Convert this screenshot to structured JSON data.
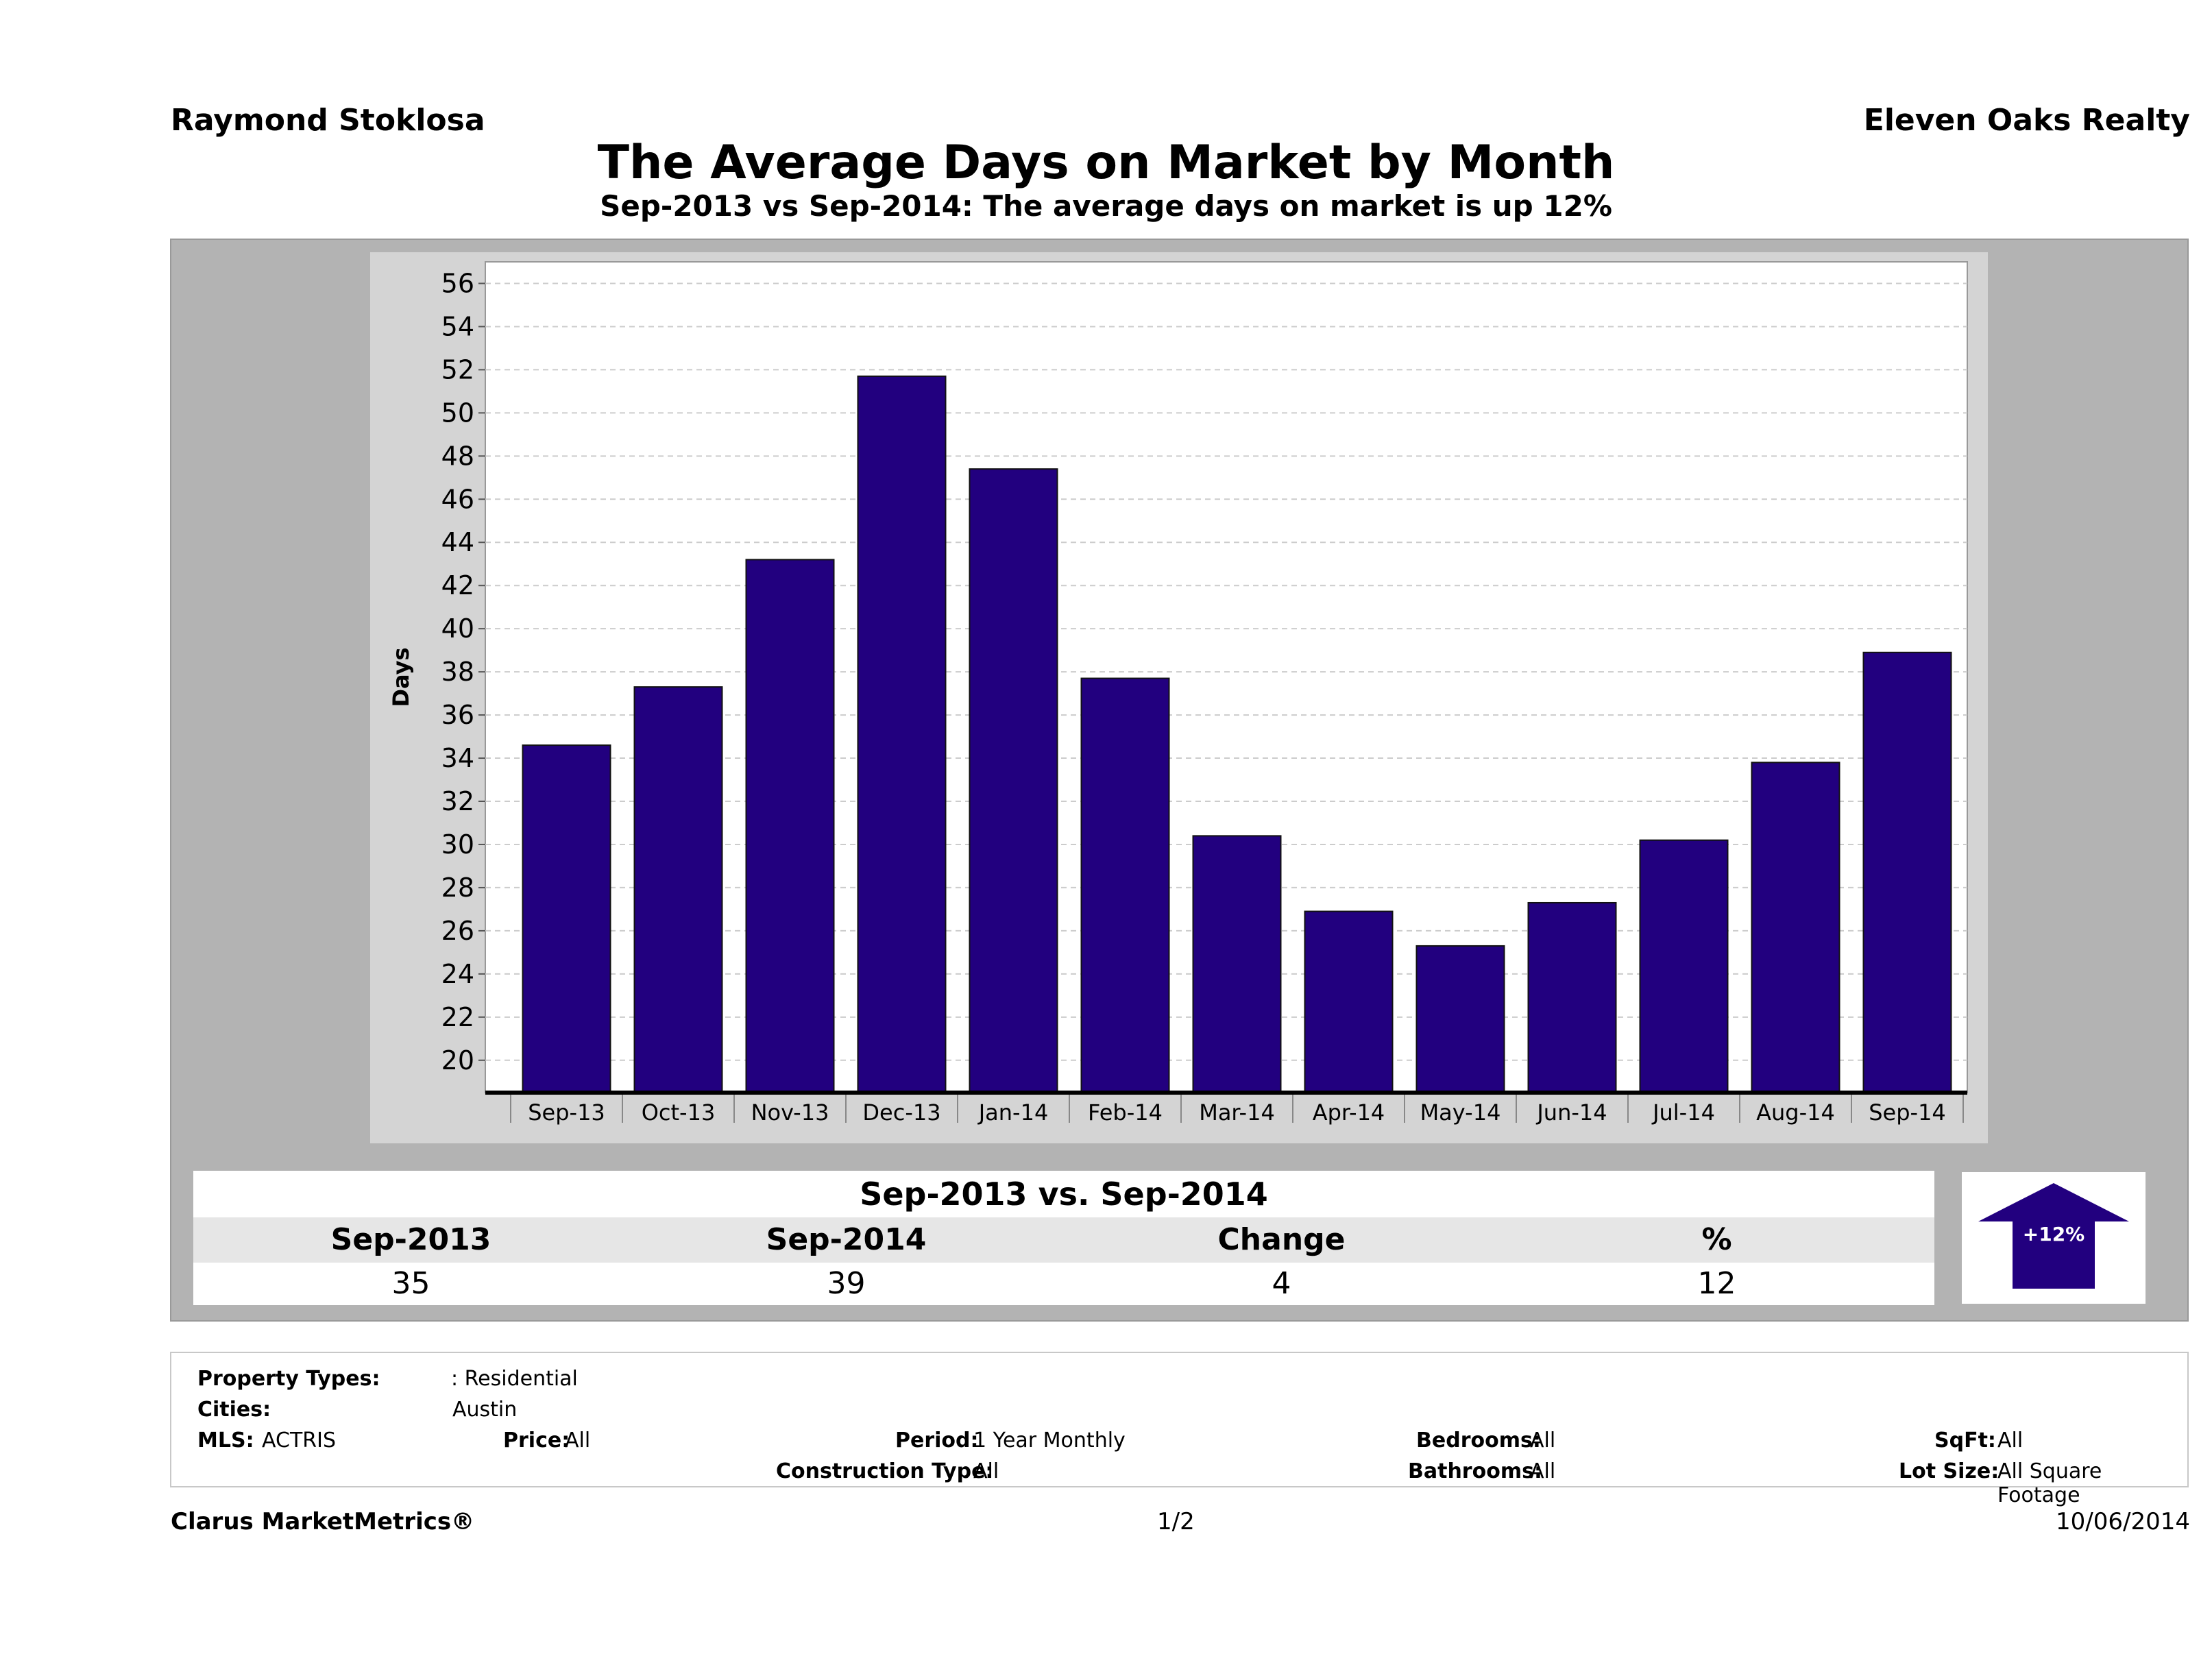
{
  "header": {
    "agent_name": "Raymond Stoklosa",
    "company_name": "Eleven Oaks Realty",
    "title": "The Average Days on Market by Month",
    "subtitle": "Sep-2013 vs Sep-2014: The average days on market is up 12%"
  },
  "colors": {
    "bar": "#22007f",
    "panel_gray": "#b3b3b3",
    "plot_frame": "#d4d4d4"
  },
  "chart_data": {
    "type": "bar",
    "categories": [
      "Sep-13",
      "Oct-13",
      "Nov-13",
      "Dec-13",
      "Jan-14",
      "Feb-14",
      "Mar-14",
      "Apr-14",
      "May-14",
      "Jun-14",
      "Jul-14",
      "Aug-14",
      "Sep-14"
    ],
    "values": [
      34.6,
      37.3,
      43.2,
      51.7,
      47.4,
      37.7,
      30.4,
      26.9,
      25.3,
      27.3,
      30.2,
      33.8,
      38.9
    ],
    "ylabel": "Days",
    "xlabel": "",
    "ylim": [
      18.5,
      57
    ],
    "yticks": [
      20,
      22,
      24,
      26,
      28,
      30,
      32,
      34,
      36,
      38,
      40,
      42,
      44,
      46,
      48,
      50,
      52,
      54,
      56
    ],
    "grid": true
  },
  "comparison": {
    "title": "Sep-2013 vs. Sep-2014",
    "headers": [
      "Sep-2013",
      "Sep-2014",
      "Change",
      "%"
    ],
    "values": [
      "35",
      "39",
      "4",
      "12"
    ],
    "badge": "+12%",
    "direction_icon": "up-arrow-icon"
  },
  "filters": {
    "property_types_label": "Property Types:",
    "property_types_value": ": Residential",
    "cities_label": "Cities:",
    "cities_value": "Austin",
    "mls_label": "MLS:",
    "mls_value": "ACTRIS",
    "price_label": "Price:",
    "price_value": "All",
    "period_label": "Period:",
    "period_value": "1 Year Monthly",
    "construction_label": "Construction Type:",
    "construction_value": "All",
    "bedrooms_label": "Bedrooms:",
    "bedrooms_value": "All",
    "bathrooms_label": "Bathrooms:",
    "bathrooms_value": "All",
    "sqft_label": "SqFt:",
    "sqft_value": "All",
    "lotsize_label": "Lot Size:",
    "lotsize_value": "All Square Footage"
  },
  "footer": {
    "brand": "Clarus MarketMetrics®",
    "page": "1/2",
    "date": "10/06/2014"
  }
}
